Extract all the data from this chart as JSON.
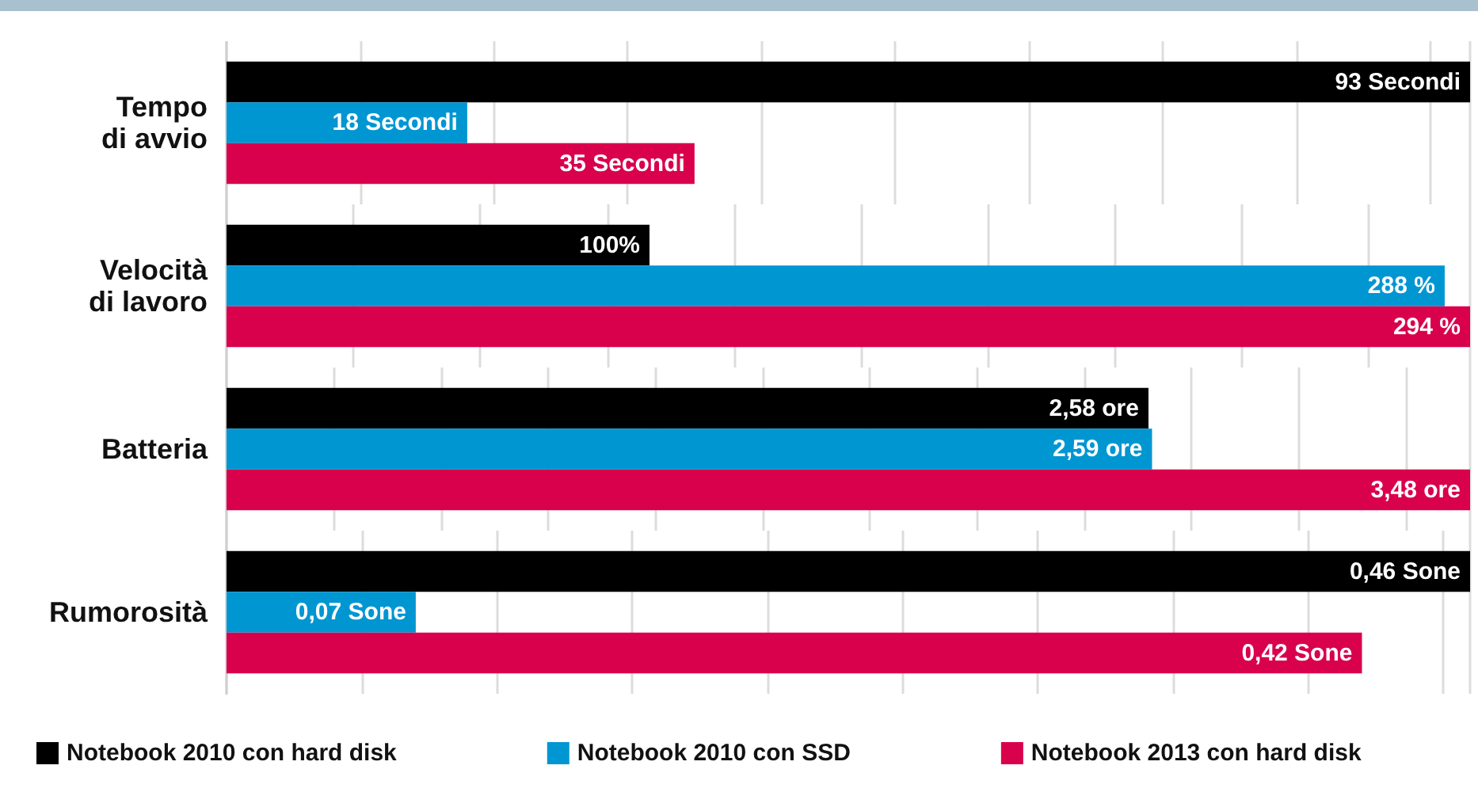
{
  "chart_data": [
    {
      "type": "bar",
      "orientation": "horizontal",
      "categories": [
        "Tempo\ndi avvio"
      ],
      "grid": "x",
      "tick_labels": "y",
      "series": [
        {
          "color": "#000000",
          "values": [
            93
          ],
          "value_labels": [
            "93 Secondi"
          ]
        },
        {
          "color": "#0096d2",
          "values": [
            18
          ],
          "value_labels": [
            "18 Secondi"
          ]
        },
        {
          "color": "#d9004c",
          "values": [
            35
          ],
          "value_labels": [
            "35 Secondi"
          ]
        }
      ]
    },
    {
      "type": "bar",
      "orientation": "horizontal",
      "categories": [
        "Velocità\ndi lavoro"
      ],
      "grid": "x",
      "tick_labels": "y",
      "series": [
        {
          "color": "#000000",
          "values": [
            100
          ],
          "value_labels": [
            "100%"
          ]
        },
        {
          "color": "#0096d2",
          "values": [
            288
          ],
          "value_labels": [
            "288 %"
          ]
        },
        {
          "color": "#d9004c",
          "values": [
            294
          ],
          "value_labels": [
            "294 %"
          ]
        }
      ]
    },
    {
      "type": "bar",
      "orientation": "horizontal",
      "categories": [
        "Batteria"
      ],
      "grid": "x",
      "tick_labels": "y",
      "series": [
        {
          "color": "#000000",
          "values": [
            2.58
          ],
          "value_labels": [
            "2,58 ore"
          ]
        },
        {
          "color": "#0096d2",
          "values": [
            2.59
          ],
          "value_labels": [
            "2,59 ore"
          ]
        },
        {
          "color": "#d9004c",
          "values": [
            3.48
          ],
          "value_labels": [
            "3,48 ore"
          ]
        }
      ]
    },
    {
      "type": "bar",
      "orientation": "horizontal",
      "categories": [
        "Rumorosità"
      ],
      "grid": "x",
      "tick_labels": "y",
      "legend": "bottom",
      "series": [
        {
          "name": "Notebook 2010 con hard disk",
          "color": "#000000",
          "values": [
            0.46
          ],
          "value_labels": [
            "0,46 Sone"
          ]
        },
        {
          "name": "Notebook 2010 con SSD",
          "color": "#0096d2",
          "values": [
            0.07
          ],
          "value_labels": [
            "0,07 Sone"
          ]
        },
        {
          "name": "Notebook 2013 con hard disk",
          "color": "#d9004c",
          "values": [
            0.42
          ],
          "value_labels": [
            "0,42 Sone"
          ]
        }
      ]
    }
  ]
}
